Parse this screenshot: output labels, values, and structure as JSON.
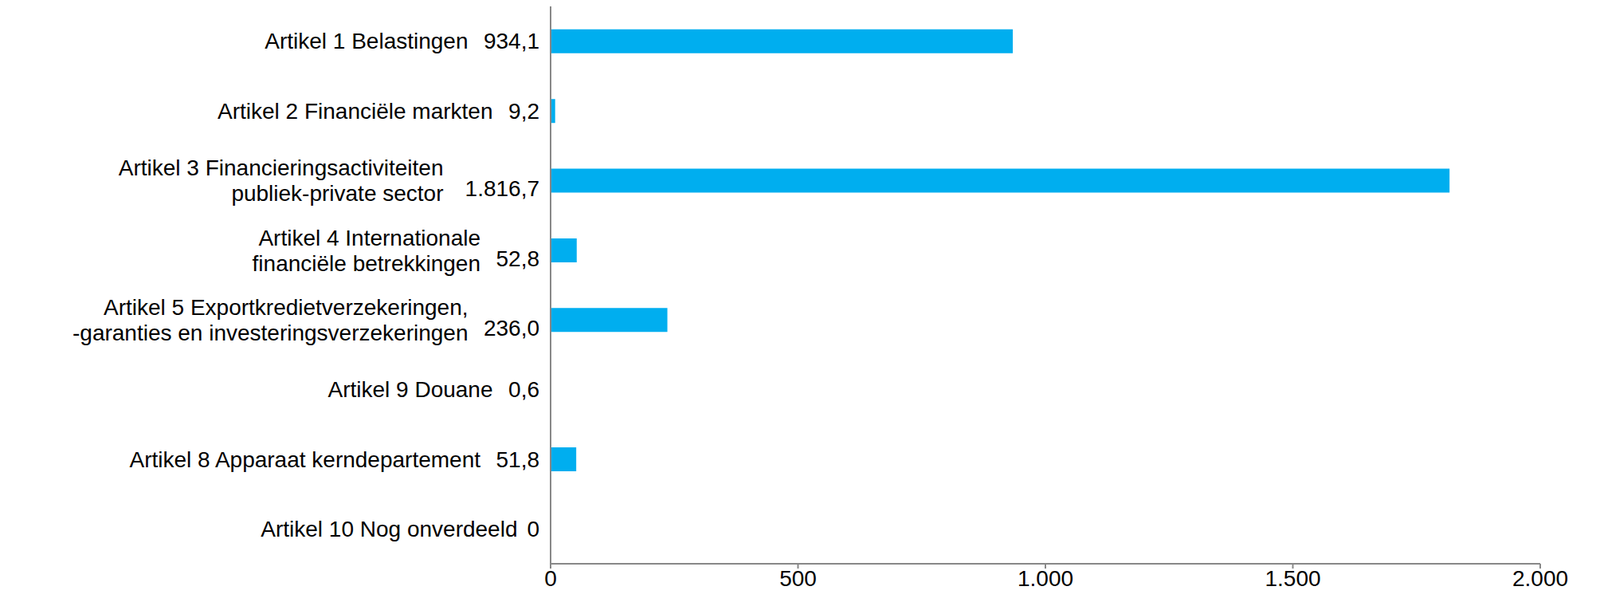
{
  "chart_data": {
    "type": "bar",
    "orientation": "horizontal",
    "categories": [
      "Artikel 1 Belastingen",
      "Artikel 2 Financiële markten",
      "Artikel 3 Financieringsactiviteiten\npubliek-private sector",
      "Artikel 4 Internationale\nfinanciële betrekkingen",
      "Artikel 5 Exportkredietverzekeringen,\n-garanties en investeringsverzekeringen",
      "Artikel 9 Douane",
      "Artikel 8 Apparaat kerndepartement",
      "Artikel 10 Nog onverdeeld"
    ],
    "values": [
      934.1,
      9.2,
      1816.7,
      52.8,
      236.0,
      0.6,
      51.8,
      0
    ],
    "value_labels": [
      "934,1",
      "9,2",
      "1.816,7",
      "52,8",
      "236,0",
      "0,6",
      "51,8",
      "0"
    ],
    "data_labels": true,
    "color": "#00AEEF",
    "xlim": [
      0,
      2000
    ],
    "xticks": [
      0,
      500,
      {
        "value": 1000,
        "label": "1.000"
      },
      {
        "value": 1500,
        "label": "1.500"
      },
      {
        "value": 2000,
        "label": "2.000"
      }
    ],
    "grid": false
  }
}
